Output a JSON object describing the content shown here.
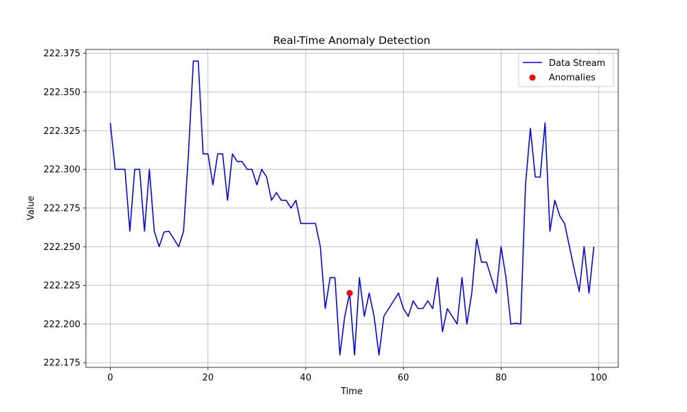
{
  "chart_data": {
    "type": "line",
    "title": "Real-Time Anomaly Detection",
    "xlabel": "Time",
    "ylabel": "Value",
    "xlim": [
      -5,
      104
    ],
    "ylim": [
      222.172,
      222.3775
    ],
    "xticks": [
      0,
      20,
      40,
      60,
      80,
      100
    ],
    "yticks": [
      222.175,
      222.2,
      222.225,
      222.25,
      222.275,
      222.3,
      222.325,
      222.35,
      222.375
    ],
    "grid": true,
    "legend_position": "top-right",
    "legend": [
      "Data Stream",
      "Anomalies"
    ],
    "colors": {
      "line": "#0000ff",
      "anomaly": "#ff0000",
      "grid": "#b0b0b0"
    },
    "series": [
      {
        "name": "Data Stream",
        "x": [
          0,
          1,
          2,
          3,
          4,
          5,
          6,
          7,
          8,
          9,
          10,
          11,
          12,
          13,
          14,
          15,
          16,
          17,
          18,
          19,
          20,
          21,
          22,
          23,
          24,
          25,
          26,
          27,
          28,
          29,
          30,
          31,
          32,
          33,
          34,
          35,
          36,
          37,
          38,
          39,
          40,
          41,
          42,
          43,
          44,
          45,
          46,
          47,
          48,
          49,
          50,
          51,
          52,
          53,
          54,
          55,
          56,
          57,
          58,
          59,
          60,
          61,
          62,
          63,
          64,
          65,
          66,
          67,
          68,
          69,
          70,
          71,
          72,
          73,
          74,
          75,
          76,
          77,
          78,
          79,
          80,
          81,
          82,
          83,
          84,
          85,
          86,
          87,
          88,
          89,
          90,
          91,
          92,
          93,
          94,
          95,
          96,
          97,
          98,
          99
        ],
        "y": [
          222.33,
          222.3,
          222.3,
          222.3,
          222.26,
          222.3,
          222.3,
          222.26,
          222.3,
          222.26,
          222.25,
          222.2595,
          222.26,
          222.255,
          222.25,
          222.26,
          222.31,
          222.37,
          222.37,
          222.31,
          222.31,
          222.29,
          222.31,
          222.31,
          222.28,
          222.31,
          222.305,
          222.305,
          222.3,
          222.3,
          222.29,
          222.3,
          222.295,
          222.28,
          222.285,
          222.28,
          222.28,
          222.275,
          222.28,
          222.265,
          222.265,
          222.265,
          222.265,
          222.25,
          222.21,
          222.23,
          222.23,
          222.18,
          222.205,
          222.22,
          222.18,
          222.23,
          222.205,
          222.22,
          222.205,
          222.18,
          222.205,
          222.21,
          222.215,
          222.22,
          222.21,
          222.205,
          222.215,
          222.21,
          222.21,
          222.215,
          222.21,
          222.23,
          222.195,
          222.21,
          222.205,
          222.2,
          222.23,
          222.2,
          222.22,
          222.255,
          222.24,
          222.24,
          222.23,
          222.22,
          222.25,
          222.23,
          222.2,
          222.2005,
          222.2,
          222.29,
          222.3265,
          222.295,
          222.295,
          222.33,
          222.26,
          222.28,
          222.27,
          222.265,
          222.25,
          222.235,
          222.221,
          222.25,
          222.22,
          222.25
        ]
      },
      {
        "name": "Anomalies",
        "type": "scatter",
        "x": [
          49
        ],
        "y": [
          222.22
        ]
      }
    ]
  }
}
